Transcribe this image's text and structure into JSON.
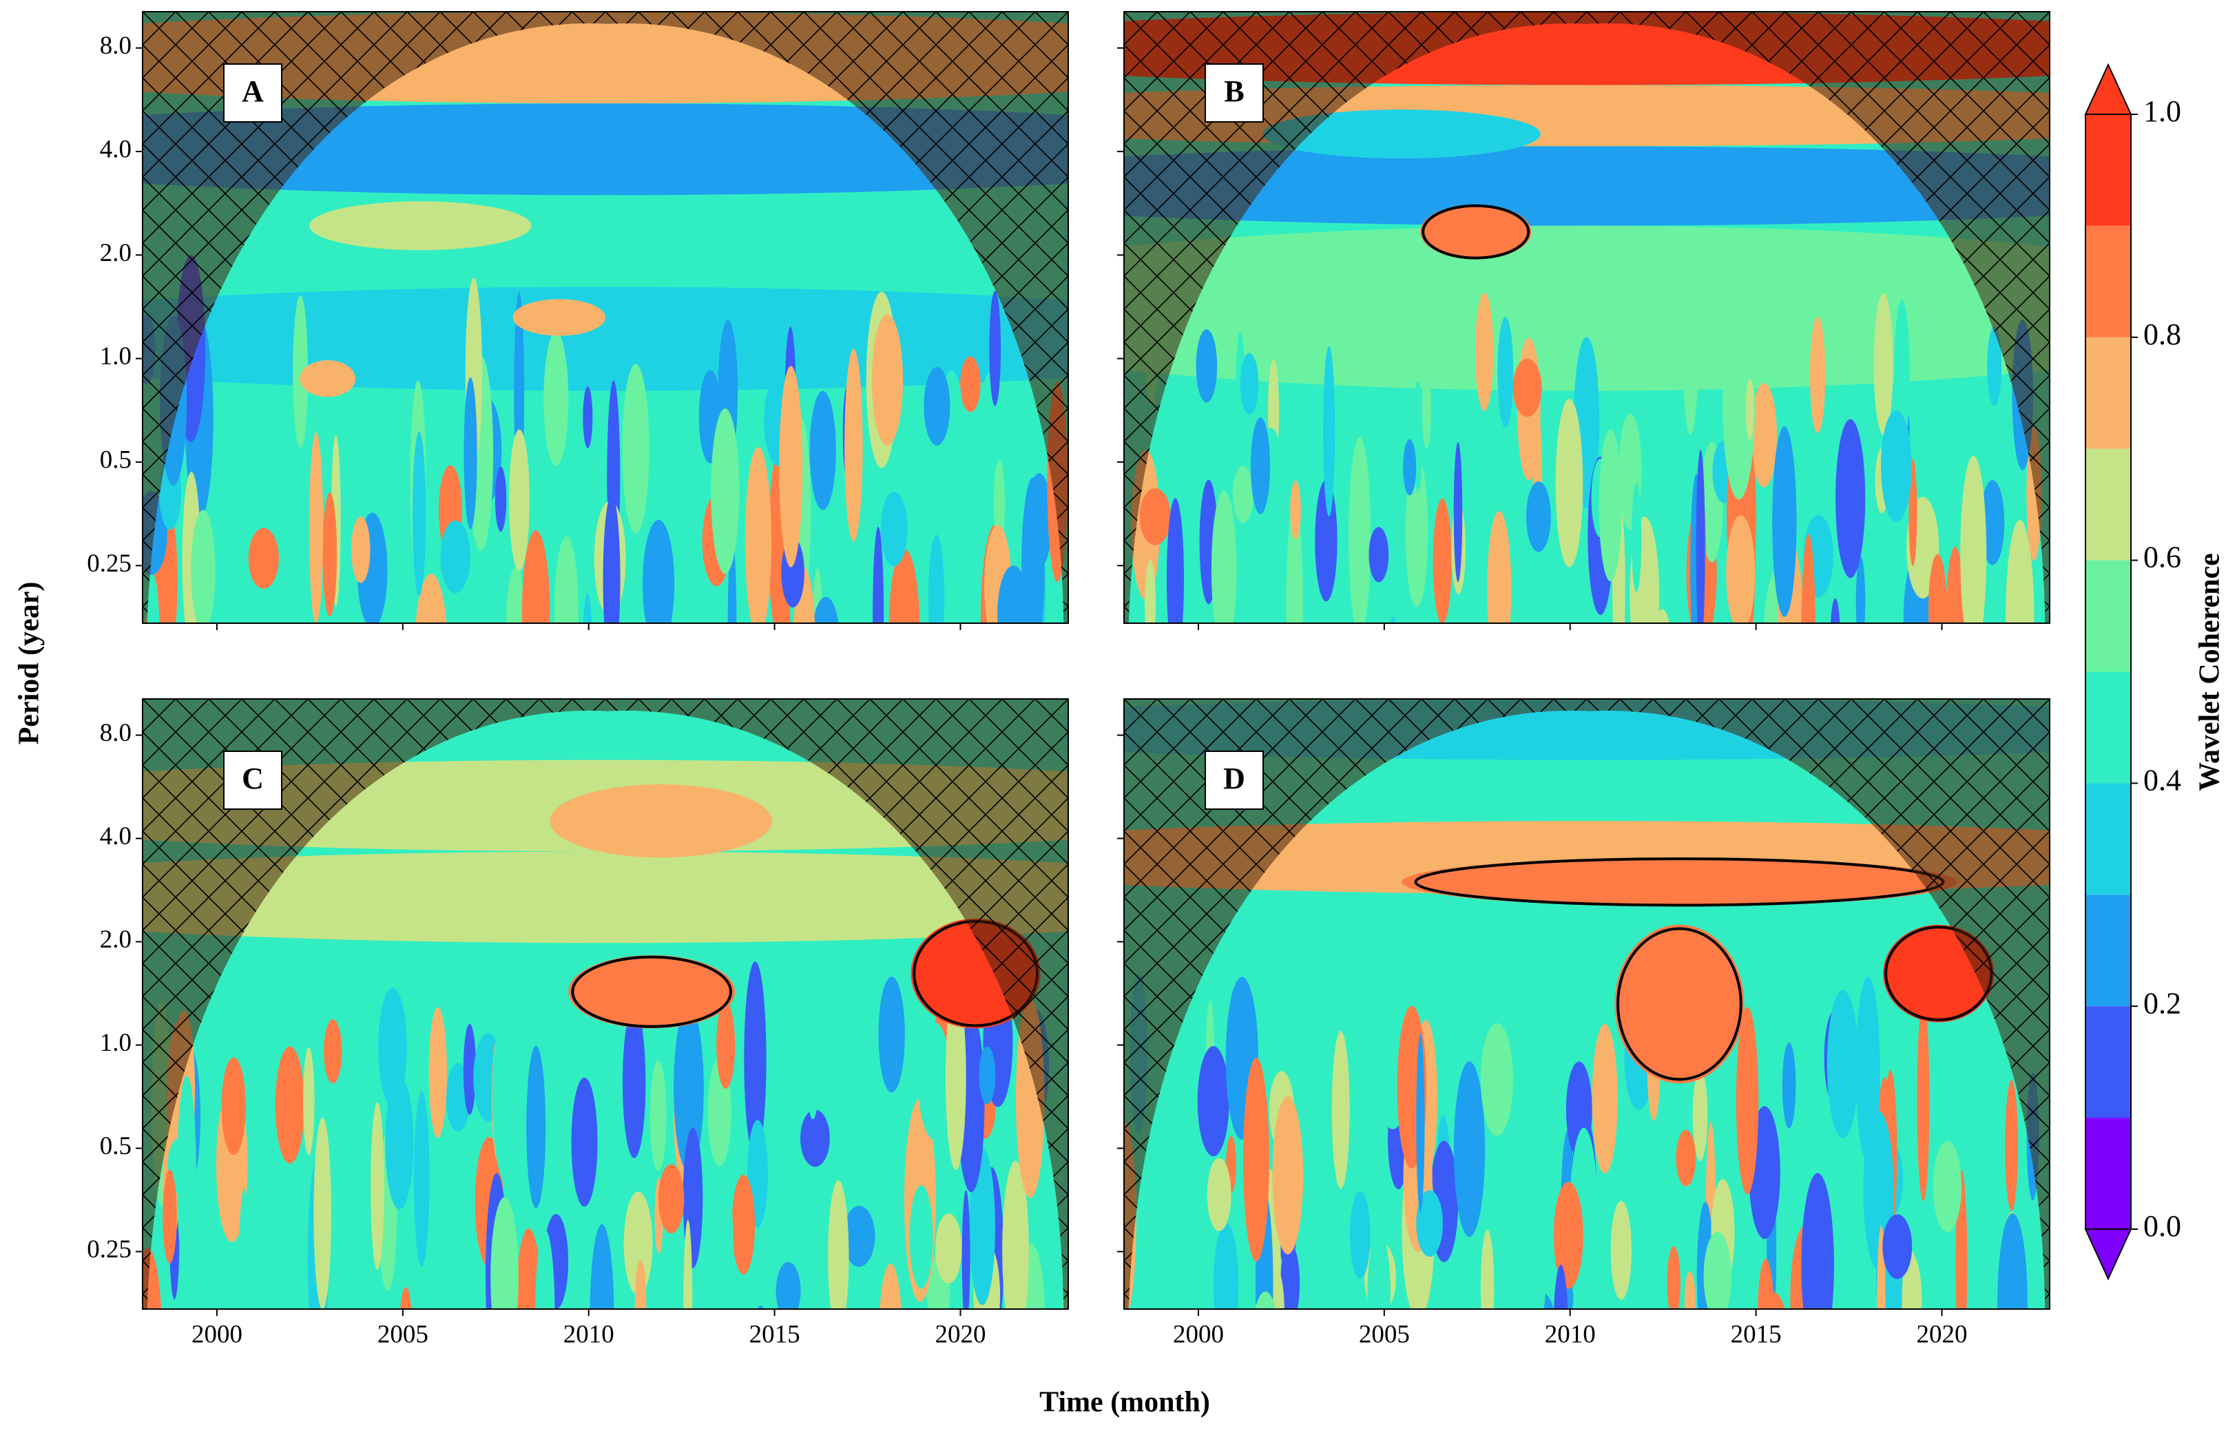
{
  "chart_data": [
    {
      "type": "contour",
      "panel_label": "A",
      "xlim": [
        1998,
        2022.9
      ],
      "ylim": [
        0.17,
        10.2
      ],
      "yscale": "log2",
      "xticks": [
        2000,
        2005,
        2010,
        2015,
        2020
      ],
      "yticks": [
        0.25,
        0.5,
        {
          "value": 1,
          "label": "1.0"
        },
        {
          "value": 2,
          "label": "2.0"
        },
        {
          "value": 4,
          "label": "4.0"
        },
        {
          "value": 8,
          "label": "8.0"
        }
      ]
    },
    {
      "type": "contour",
      "panel_label": "B",
      "xlim": [
        1998,
        2022.9
      ],
      "ylim": [
        0.17,
        10.2
      ],
      "yscale": "log2",
      "xticks": [
        2000,
        2005,
        2010,
        2015,
        2020
      ],
      "yticks": [
        0.25,
        0.5,
        {
          "value": 1,
          "label": "1.0"
        },
        {
          "value": 2,
          "label": "2.0"
        },
        {
          "value": 4,
          "label": "4.0"
        },
        {
          "value": 8,
          "label": "8.0"
        }
      ]
    },
    {
      "type": "contour",
      "panel_label": "C",
      "xlim": [
        1998,
        2022.9
      ],
      "ylim": [
        0.17,
        10.2
      ],
      "yscale": "log2",
      "xticks": [
        2000,
        2005,
        2010,
        2015,
        2020
      ],
      "yticks": [
        0.25,
        0.5,
        {
          "value": 1,
          "label": "1.0"
        },
        {
          "value": 2,
          "label": "2.0"
        },
        {
          "value": 4,
          "label": "4.0"
        },
        {
          "value": 8,
          "label": "8.0"
        }
      ]
    },
    {
      "type": "contour",
      "panel_label": "D",
      "xlim": [
        1998,
        2022.9
      ],
      "ylim": [
        0.17,
        10.2
      ],
      "yscale": "log2",
      "xticks": [
        2000,
        2005,
        2010,
        2015,
        2020
      ],
      "yticks": [
        0.25,
        0.5,
        {
          "value": 1,
          "label": "1.0"
        },
        {
          "value": 2,
          "label": "2.0"
        },
        {
          "value": 4,
          "label": "4.0"
        },
        {
          "value": 8,
          "label": "8.0"
        }
      ]
    }
  ],
  "figure": {
    "xlabel": "Time (month)",
    "ylabel": "Period (year)",
    "colorbar": {
      "label": "Wavelet Coherence",
      "lim": [
        0,
        1
      ],
      "levels": [
        0,
        0.1,
        0.2,
        0.3,
        0.4,
        0.5,
        0.6,
        0.7,
        0.8,
        0.9,
        1
      ],
      "colors": [
        "#8000ff",
        "#3b5bf6",
        "#1e9ff0",
        "#1ed2e3",
        "#31eec2",
        "#6af2a0",
        "#c4e487",
        "#f9b26a",
        "#ff7b46",
        "#ff3b1e"
      ],
      "ticks": [
        {
          "value": 0,
          "label": "0.0"
        },
        0.2,
        0.4,
        0.6,
        0.8,
        {
          "value": 1,
          "label": "1.0"
        }
      ]
    }
  }
}
